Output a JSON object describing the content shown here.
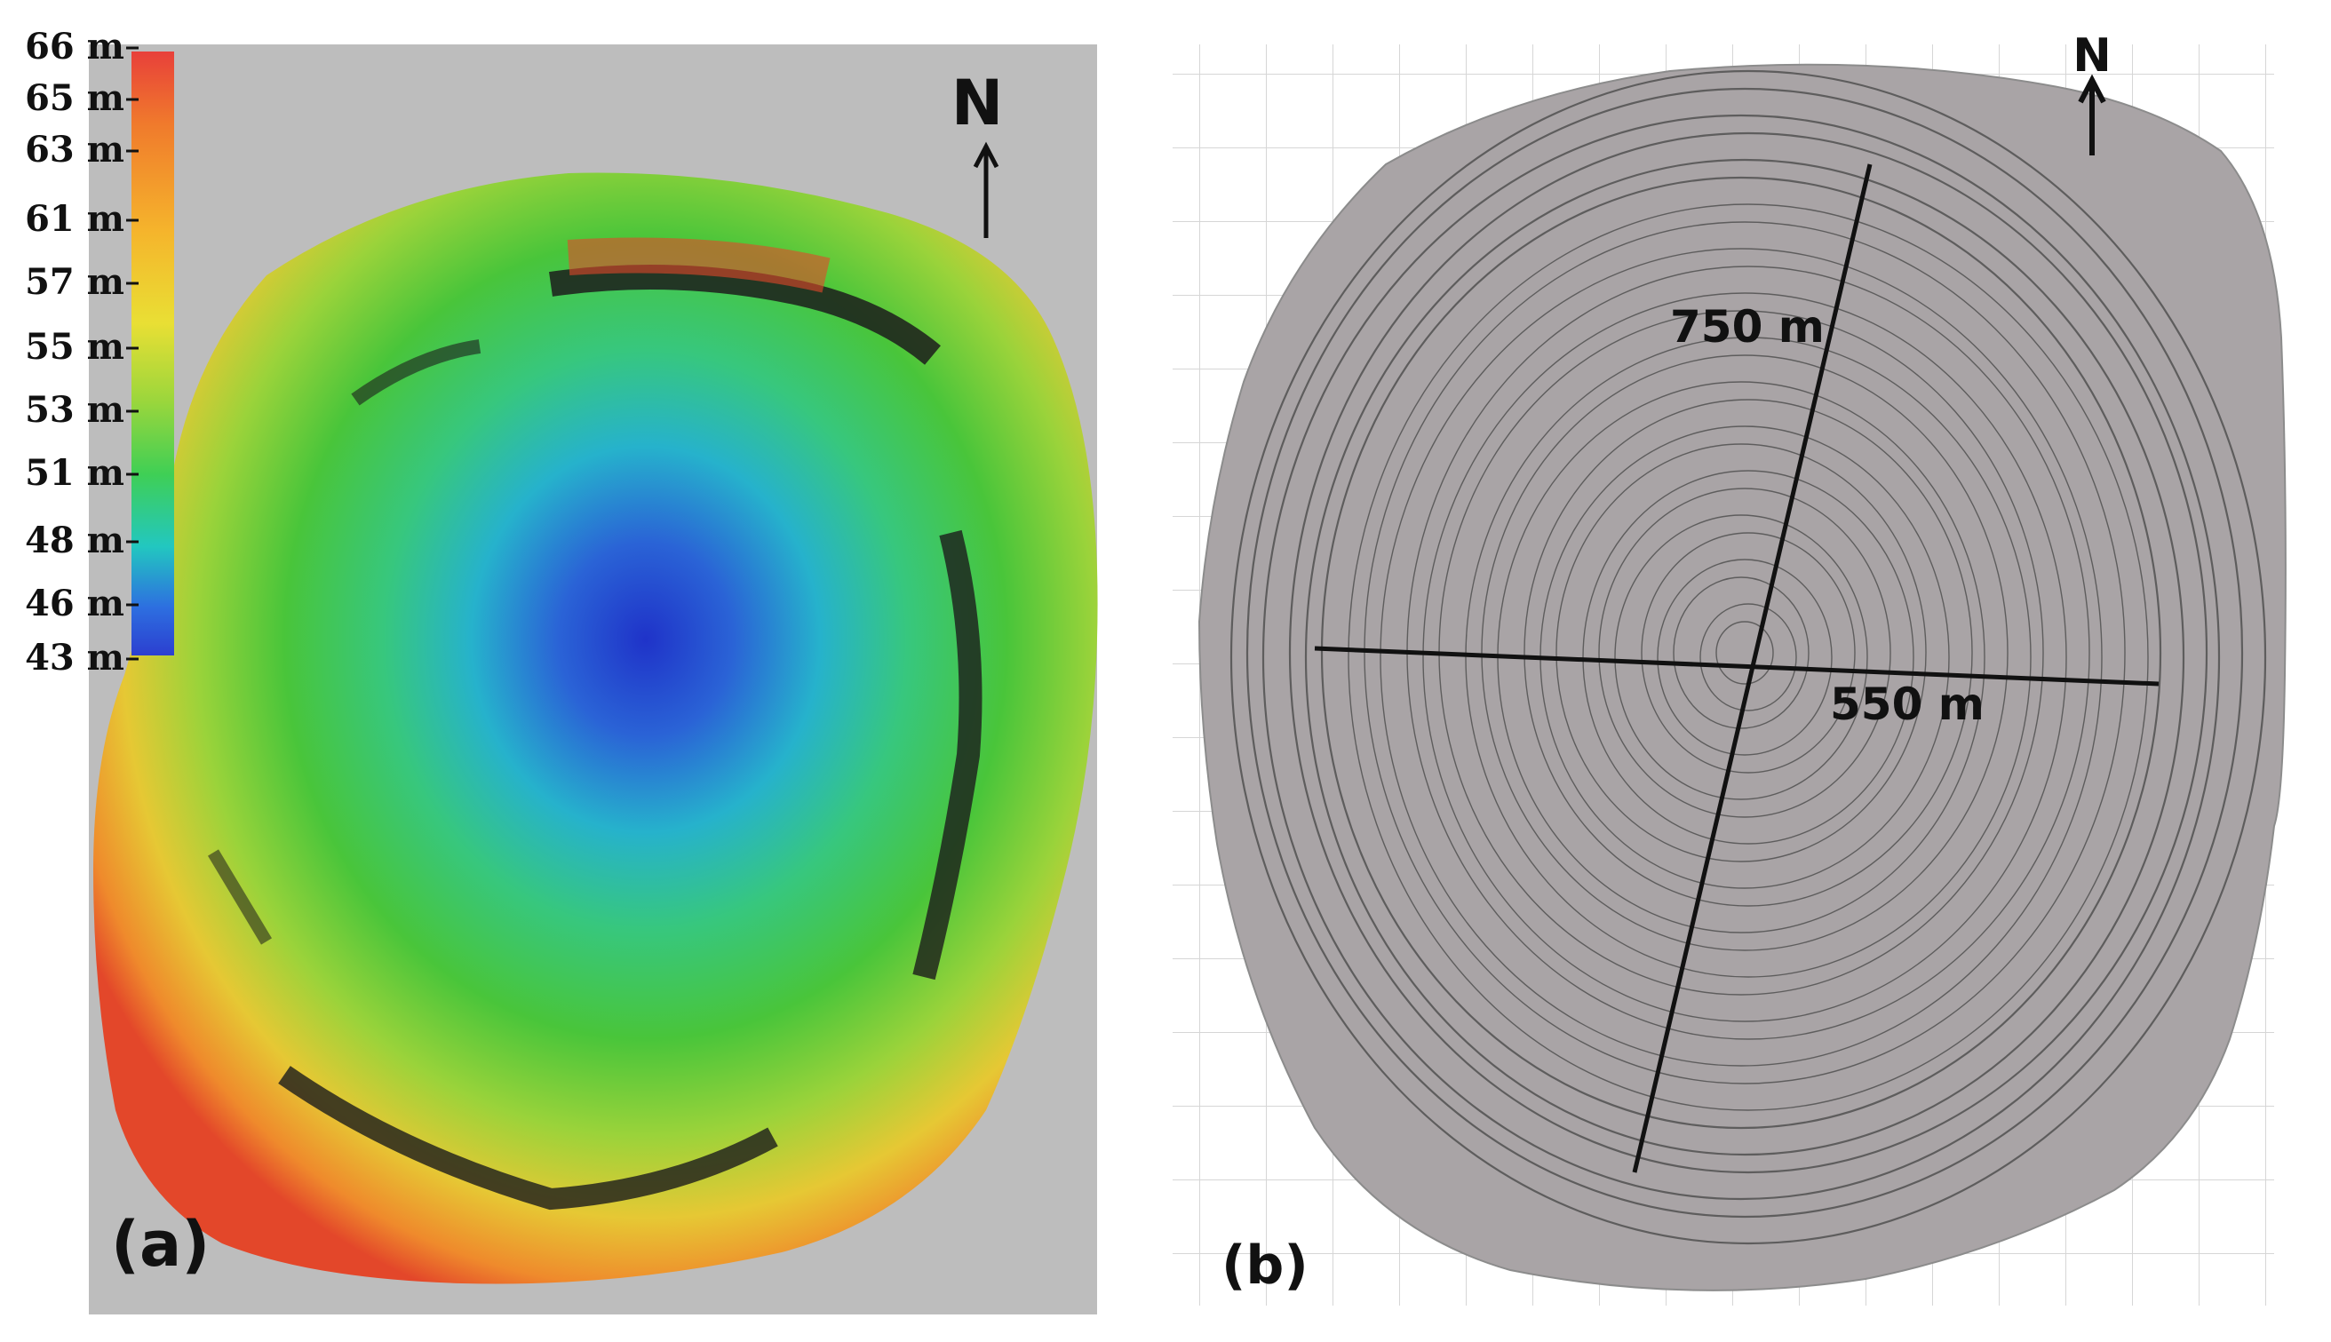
{
  "panel_a": {
    "label": "(a)",
    "north_label": "N",
    "scale": {
      "ticks": [
        "66 m",
        "65 m",
        "63 m",
        "61 m",
        "57 m",
        "55 m",
        "53 m",
        "51 m",
        "48 m",
        "46 m",
        "43 m"
      ],
      "colors": [
        "#e8403a",
        "#f07a2c",
        "#f5b52c",
        "#e9df34",
        "#9ad63c",
        "#3fcf55",
        "#22c7c0",
        "#2d6fe0",
        "#2c3fd0"
      ]
    },
    "colors": {
      "background": "#bdbdbd",
      "rim_high": "#e3472a",
      "mid": "#3ec33a",
      "low": "#2a3fc4"
    }
  },
  "panel_b": {
    "label": "(b)",
    "north_label": "N",
    "dimension_long": "750 m",
    "dimension_short": "550 m",
    "colors": {
      "terrain": "#a9a4a6",
      "contour": "#4b4b4b",
      "grid": "#d6d6d6"
    }
  }
}
